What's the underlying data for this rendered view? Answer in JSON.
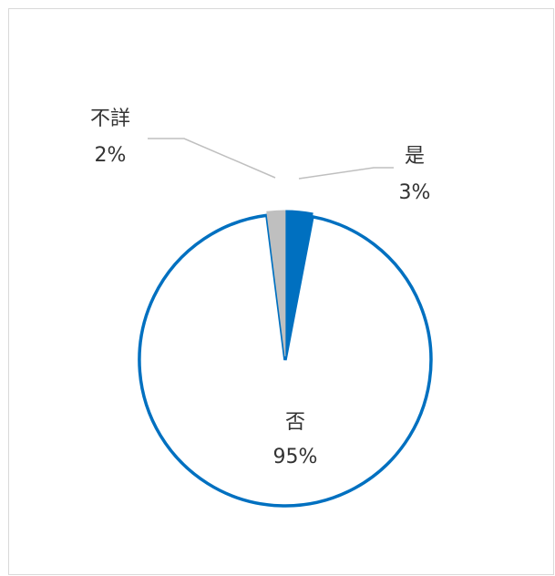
{
  "chart_data": {
    "type": "pie",
    "title": "",
    "slices": [
      {
        "label": "是",
        "value": 3,
        "pct_label": "3%",
        "fill": "#0070c0",
        "stroke": "#0070c0",
        "exploded": true
      },
      {
        "label": "否",
        "value": 95,
        "pct_label": "95%",
        "fill": "#ffffff",
        "stroke": "#0070c0",
        "exploded": true
      },
      {
        "label": "不詳",
        "value": 2,
        "pct_label": "2%",
        "fill": "#bfbfbf",
        "stroke": "#bfbfbf",
        "exploded": true
      }
    ],
    "start_angle": "top",
    "direction": "clockwise",
    "leader_line_color": "#bfbfbf",
    "legend": "none"
  }
}
